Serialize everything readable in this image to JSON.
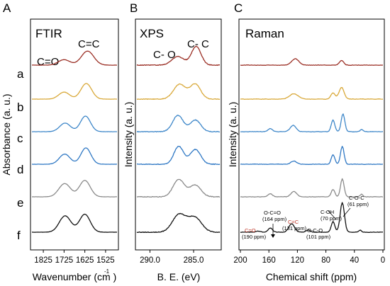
{
  "chart_data": [
    {
      "type": "line",
      "panel": "A",
      "title": "FTIR",
      "xlabel": "Wavenumber (cm  )",
      "ylabel": "Absorbance (a. u.)",
      "xlim": [
        1880,
        1470
      ],
      "x_reversed": true,
      "xticks": [
        1825,
        1725,
        1625,
        1525
      ],
      "annotations": [
        "C=O",
        "C=C"
      ],
      "series": [
        {
          "name": "a",
          "color": "#9b2f25",
          "peaks": [
            {
              "x": 1725,
              "h": 0.35,
              "w": 28
            },
            {
              "x": 1612,
              "h": 0.9,
              "w": 30
            }
          ]
        },
        {
          "name": "b",
          "color": "#d9a93a",
          "peaks": [
            {
              "x": 1725,
              "h": 0.45,
              "w": 26
            },
            {
              "x": 1618,
              "h": 1.0,
              "w": 26
            }
          ]
        },
        {
          "name": "c",
          "color": "#3e87c9",
          "peaks": [
            {
              "x": 1720,
              "h": 0.55,
              "w": 26
            },
            {
              "x": 1622,
              "h": 1.0,
              "w": 24
            }
          ]
        },
        {
          "name": "d",
          "color": "#2f78c4",
          "peaks": [
            {
              "x": 1722,
              "h": 0.65,
              "w": 26
            },
            {
              "x": 1620,
              "h": 1.05,
              "w": 24
            }
          ]
        },
        {
          "name": "e",
          "color": "#8a8a8a",
          "peaks": [
            {
              "x": 1722,
              "h": 0.85,
              "w": 28
            },
            {
              "x": 1625,
              "h": 1.05,
              "w": 26
            }
          ]
        },
        {
          "name": "f",
          "color": "#111111",
          "peaks": [
            {
              "x": 1720,
              "h": 1.05,
              "w": 28
            },
            {
              "x": 1625,
              "h": 1.15,
              "w": 26
            }
          ]
        }
      ]
    },
    {
      "type": "line",
      "panel": "B",
      "title": "XPS",
      "xlabel": "B. E. (eV)",
      "ylabel": "Intensity (a. u.)",
      "xlim": [
        291.5,
        282.0
      ],
      "x_reversed": true,
      "xticks": [
        "290.0",
        "285.0"
      ],
      "xtick_values": [
        290.0,
        285.0
      ],
      "annotations": [
        "C- O",
        "C- C"
      ],
      "series": [
        {
          "name": "a",
          "color": "#9b2f25",
          "peaks": [
            {
              "x": 286.8,
              "h": 0.55,
              "w": 0.7
            },
            {
              "x": 284.7,
              "h": 1.2,
              "w": 0.55
            }
          ]
        },
        {
          "name": "b",
          "color": "#d9a93a",
          "peaks": [
            {
              "x": 286.6,
              "h": 0.95,
              "w": 0.7
            },
            {
              "x": 284.8,
              "h": 0.95,
              "w": 0.6
            }
          ]
        },
        {
          "name": "c",
          "color": "#3e87c9",
          "peaks": [
            {
              "x": 286.8,
              "h": 1.05,
              "w": 0.6
            },
            {
              "x": 284.8,
              "h": 0.75,
              "w": 0.6
            }
          ]
        },
        {
          "name": "d",
          "color": "#2f78c4",
          "peaks": [
            {
              "x": 286.7,
              "h": 1.15,
              "w": 0.55
            },
            {
              "x": 284.8,
              "h": 0.95,
              "w": 0.6
            }
          ]
        },
        {
          "name": "e",
          "color": "#8a8a8a",
          "peaks": [
            {
              "x": 286.7,
              "h": 1.1,
              "w": 0.65
            },
            {
              "x": 284.8,
              "h": 0.75,
              "w": 0.65
            }
          ]
        },
        {
          "name": "f",
          "color": "#111111",
          "peaks": [
            {
              "x": 286.7,
              "h": 1.1,
              "w": 0.75
            },
            {
              "x": 284.9,
              "h": 0.95,
              "w": 0.8
            }
          ]
        }
      ]
    },
    {
      "type": "line",
      "panel": "C",
      "title": "Raman",
      "xlabel": "Chemical shift (ppm)",
      "ylabel": "Intensity (a. u.)",
      "xlim": [
        200,
        0
      ],
      "x_reversed": true,
      "xticks": [
        200,
        160,
        120,
        80,
        40,
        0
      ],
      "series": [
        {
          "name": "a",
          "color": "#9b2f25",
          "peaks": [
            {
              "x": 123,
              "h": 0.3,
              "w": 5
            },
            {
              "x": 58,
              "h": 0.22,
              "w": 3
            }
          ]
        },
        {
          "name": "b",
          "color": "#d9a93a",
          "peaks": [
            {
              "x": 125,
              "h": 0.25,
              "w": 6
            },
            {
              "x": 70,
              "h": 0.3,
              "w": 3
            },
            {
              "x": 58,
              "h": 0.55,
              "w": 3.5
            }
          ]
        },
        {
          "name": "c",
          "color": "#3e87c9",
          "peaks": [
            {
              "x": 158,
              "h": 0.15,
              "w": 3
            },
            {
              "x": 126,
              "h": 0.3,
              "w": 4
            },
            {
              "x": 70,
              "h": 0.55,
              "w": 2.5
            },
            {
              "x": 56,
              "h": 0.85,
              "w": 2.5
            },
            {
              "x": 30,
              "h": 0.1,
              "w": 2
            }
          ]
        },
        {
          "name": "d",
          "color": "#2f78c4",
          "peaks": [
            {
              "x": 125,
              "h": 0.15,
              "w": 4
            },
            {
              "x": 70,
              "h": 0.45,
              "w": 2.5
            },
            {
              "x": 57,
              "h": 0.85,
              "w": 2.5
            }
          ]
        },
        {
          "name": "e",
          "color": "#8a8a8a",
          "peaks": [
            {
              "x": 158,
              "h": 0.15,
              "w": 3
            },
            {
              "x": 125,
              "h": 0.25,
              "w": 4
            },
            {
              "x": 70,
              "h": 0.35,
              "w": 2.5
            },
            {
              "x": 57,
              "h": 0.85,
              "w": 2.5
            },
            {
              "x": 30,
              "h": 0.12,
              "w": 2
            }
          ]
        },
        {
          "name": "f",
          "color": "#111111",
          "peaks": [
            {
              "x": 175,
              "h": 0.05,
              "w": 3
            },
            {
              "x": 158,
              "h": 0.2,
              "w": 3
            },
            {
              "x": 128,
              "h": 0.4,
              "w": 4
            },
            {
              "x": 105,
              "h": 0.1,
              "w": 3
            },
            {
              "x": 70,
              "h": 0.5,
              "w": 2.5
            },
            {
              "x": 57,
              "h": 1.4,
              "w": 3
            },
            {
              "x": 32,
              "h": 0.1,
              "w": 2
            }
          ]
        }
      ],
      "annotations": [
        {
          "text_a": "C=O",
          "text_b": "(190 ppm)"
        },
        {
          "text_a": "O-C=O",
          "text_b": "(164 ppm)"
        },
        {
          "text_a": "C=C",
          "text_b": "(131 ppm)"
        },
        {
          "text_a": "O-C-O",
          "text_b": "(101 ppm)"
        },
        {
          "text_a": "C-OH",
          "text_b": "(70 ppm)"
        },
        {
          "text_a": "C-O-C",
          "text_b": "(61 ppm)"
        }
      ]
    }
  ],
  "trace_letters": [
    "a",
    "b",
    "c",
    "d",
    "e",
    "f"
  ]
}
